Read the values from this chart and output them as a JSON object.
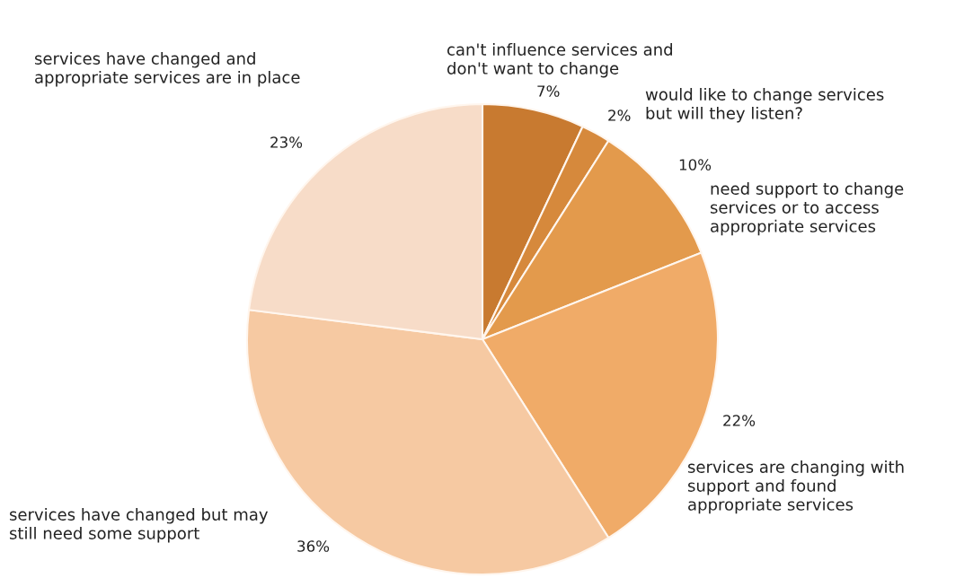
{
  "chart_data": {
    "type": "pie",
    "categories": [
      "can't influence services and\ndon't want to change",
      "would like to change services\nbut will they listen?",
      "need support to change\nservices or to access\nappropriate services",
      "services are changing with\nsupport and found\nappropriate services",
      "services have changed but may\nstill need some support",
      "services have changed and\nappropriate services are in place"
    ],
    "values": [
      7,
      2,
      10,
      22,
      36,
      23
    ],
    "value_labels": [
      "7%",
      "2%",
      "10%",
      "22%",
      "36%",
      "23%"
    ],
    "colors": [
      "#c87a30",
      "#d6893c",
      "#e39a4c",
      "#f0ab68",
      "#f6c9a2",
      "#f7dcc8"
    ]
  }
}
